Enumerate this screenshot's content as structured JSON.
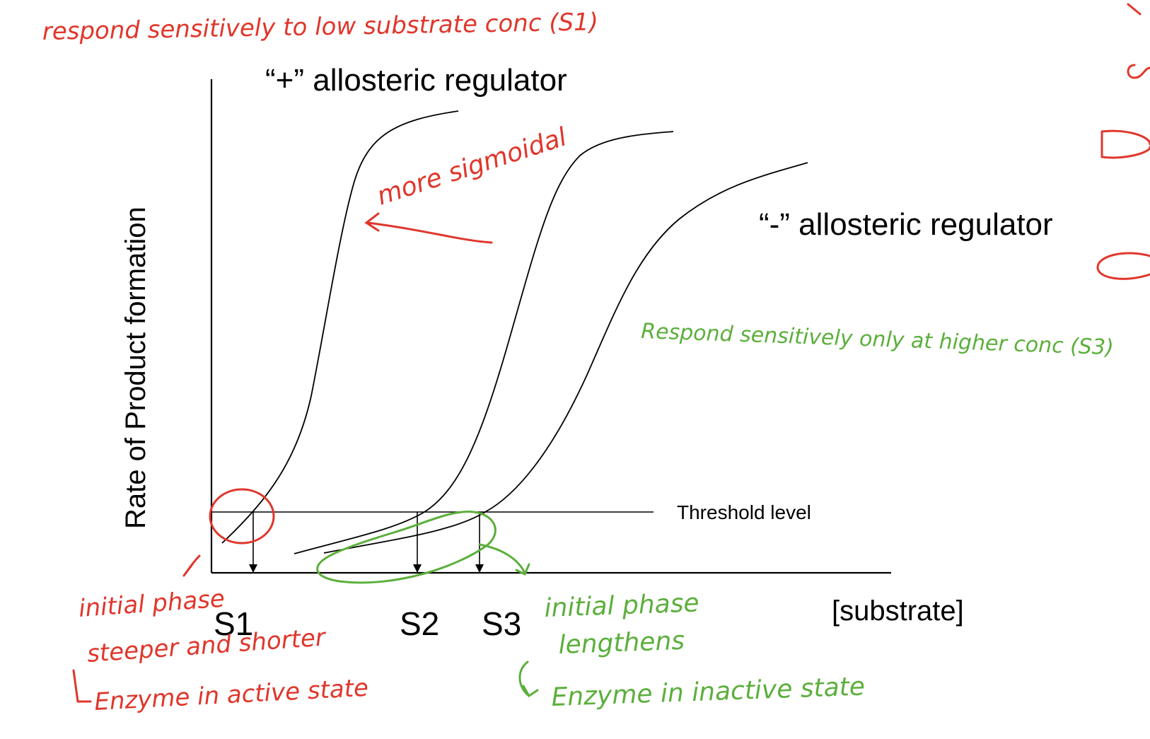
{
  "diagram": {
    "title_plus": "“+” allosteric regulator",
    "title_minus": "“-” allosteric regulator",
    "y_axis_label": "Rate of Product formation",
    "x_axis_label": "[substrate]",
    "threshold_label": "Threshold level",
    "ticks": [
      "S1",
      "S2",
      "S3"
    ]
  },
  "annotations": {
    "red_top": "respond sensitively to low substrate conc (S1)",
    "red_sigmoidal": "more sigmoidal",
    "red_initial_1": "initial phase",
    "red_initial_2": "steeper and shorter",
    "red_initial_3": "Enzyme in active state",
    "green_respond": "Respond sensitively only at higher conc (S3)",
    "green_initial_1": "initial phase",
    "green_initial_2": "lengthens",
    "green_initial_3": "Enzyme in inactive state"
  },
  "colors": {
    "red_ink": "#e0362b",
    "green_ink": "#5caf3c"
  }
}
